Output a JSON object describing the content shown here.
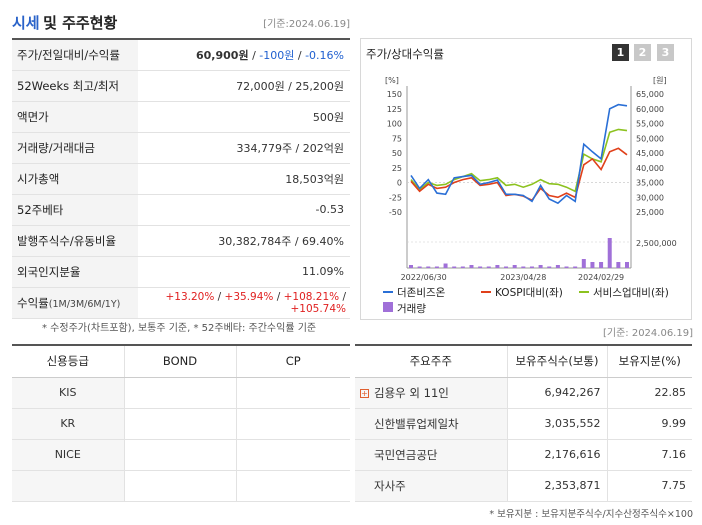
{
  "header": {
    "title_blue": "시세",
    "title_rest": "및 주주현황",
    "date": "[기준:2024.06.19]"
  },
  "quote_rows": [
    {
      "label": "주가/전일대비/수익률",
      "price": "60,900원",
      "sep1": " / ",
      "change": "-100원",
      "sep2": " / ",
      "pct": "-0.16%"
    },
    {
      "label": "52Weeks 최고/최저",
      "value": "72,000원 / 25,200원"
    },
    {
      "label": "액면가",
      "value": "500원"
    },
    {
      "label": "거래량/거래대금",
      "value": "334,779주 / 202억원"
    },
    {
      "label": "시가총액",
      "value": "18,503억원"
    },
    {
      "label": "52주베타",
      "value": "-0.53"
    },
    {
      "label": "발행주식수/유동비율",
      "value": "30,382,784주 / 69.40%"
    },
    {
      "label": "외국인지분율",
      "value": "11.09%"
    }
  ],
  "returns_row": {
    "label": "수익률",
    "label_sub": "(1M/3M/6M/1Y)",
    "v1": "+13.20%",
    "v2": "+35.94%",
    "v3": "+108.21%",
    "v4": "+105.74%",
    "sep": " / "
  },
  "footnote1": "* 수정주가(차트포함), 보통주 기준, * 52주베타: 주간수익률 기준",
  "date2": "[기준: 2024.06.19]",
  "chart": {
    "title": "주가/상대수익률",
    "period_buttons": [
      "1",
      "2",
      "3"
    ],
    "left_unit": "[%]",
    "right_unit": "[원]",
    "vol_label": "2,500,000",
    "legend": [
      "더존비즈온",
      "KOSPI대비(좌)",
      "서비스업대비(좌)",
      "거래량"
    ],
    "colors": {
      "stock": "#2a6fd6",
      "kospi": "#e0401a",
      "service": "#8cc21f",
      "volume": "#a070d8"
    }
  },
  "chart_data": {
    "type": "line",
    "x_ticks": [
      "2022/06/30",
      "2023/04/28",
      "2024/02/29"
    ],
    "y_left_ticks": [
      "150",
      "125",
      "100",
      "75",
      "50",
      "25",
      "0",
      "-25",
      "-50"
    ],
    "y_right_ticks": [
      "65,000",
      "60,000",
      "55,000",
      "50,000",
      "45,000",
      "40,000",
      "35,000",
      "30,000",
      "25,000"
    ],
    "ylim_left": [
      -50,
      150
    ],
    "series": [
      {
        "name": "더존비즈온",
        "values": [
          12,
          -10,
          5,
          -18,
          -20,
          8,
          10,
          12,
          -3,
          0,
          4,
          -20,
          -20,
          -22,
          -32,
          -5,
          -28,
          -35,
          -22,
          -32,
          65,
          52,
          40,
          125,
          132,
          130
        ]
      },
      {
        "name": "KOSPI대비(좌)",
        "values": [
          2,
          -15,
          -3,
          -10,
          -8,
          0,
          5,
          8,
          -5,
          -3,
          0,
          -22,
          -20,
          -23,
          -30,
          -10,
          -22,
          -25,
          -18,
          -25,
          30,
          40,
          22,
          52,
          58,
          47
        ]
      },
      {
        "name": "서비스업대비(좌)",
        "values": [
          5,
          -12,
          0,
          -5,
          -3,
          5,
          10,
          15,
          3,
          5,
          8,
          -5,
          -3,
          -8,
          -3,
          5,
          -2,
          -3,
          -8,
          -15,
          48,
          40,
          35,
          85,
          90,
          88
        ]
      }
    ],
    "volume": [
      0.1,
      0.05,
      0.05,
      0.05,
      0.15,
      0.05,
      0.05,
      0.1,
      0.05,
      0.05,
      0.1,
      0.05,
      0.1,
      0.05,
      0.05,
      0.1,
      0.05,
      0.1,
      0.05,
      0.05,
      0.3,
      0.2,
      0.2,
      1.0,
      0.2,
      0.2
    ]
  },
  "credit_table": {
    "headers": [
      "신용등급",
      "BOND",
      "CP"
    ],
    "rows": [
      [
        "KIS",
        "",
        ""
      ],
      [
        "KR",
        "",
        ""
      ],
      [
        "NICE",
        "",
        ""
      ],
      [
        "",
        "",
        ""
      ]
    ]
  },
  "holders_table": {
    "headers": [
      "주요주주",
      "보유주식수(보통)",
      "보유지분(%)"
    ],
    "rows": [
      [
        "김용우 외 11인",
        "6,942,267",
        "22.85"
      ],
      [
        "신한밸류업제일차",
        "3,035,552",
        "9.99"
      ],
      [
        "국민연금공단",
        "2,176,616",
        "7.16"
      ],
      [
        "자사주",
        "2,353,871",
        "7.75"
      ]
    ]
  },
  "footnote2": "* 보유지분 : 보유지분주식수/지수산정주식수×100"
}
